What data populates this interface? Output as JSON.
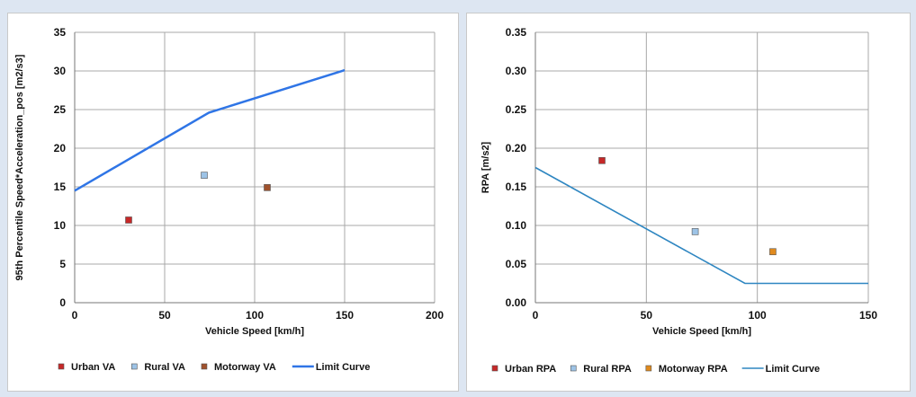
{
  "chart_data": [
    {
      "type": "scatter",
      "title": "",
      "xlabel": "Vehicle Speed [km/h]",
      "ylabel": "95th Percentile Speed*Acceleration_pos [m2/s3]",
      "xlim": [
        0,
        200
      ],
      "ylim": [
        0,
        35
      ],
      "x_ticks": [
        "0",
        "50",
        "100",
        "150",
        "200"
      ],
      "y_ticks": [
        "0",
        "5",
        "10",
        "15",
        "20",
        "25",
        "30",
        "35"
      ],
      "grid": true,
      "legend_position": "bottom",
      "series": [
        {
          "name": "Urban VA",
          "kind": "point",
          "color": "#c62828",
          "points": [
            {
              "x": 30,
              "y": 10.7
            }
          ]
        },
        {
          "name": "Rural VA",
          "kind": "point",
          "color": "#9dc3e6",
          "points": [
            {
              "x": 72,
              "y": 16.5
            }
          ]
        },
        {
          "name": "Motorway VA",
          "kind": "point",
          "color": "#a0522d",
          "points": [
            {
              "x": 107,
              "y": 14.9
            }
          ]
        },
        {
          "name": "Limit Curve",
          "kind": "line",
          "color": "#2f75e6",
          "points": [
            {
              "x": 0,
              "y": 14.5
            },
            {
              "x": 74.6,
              "y": 24.6
            },
            {
              "x": 150,
              "y": 30.1
            }
          ]
        }
      ]
    },
    {
      "type": "scatter",
      "title": "",
      "xlabel": "Vehicle Speed [km/h]",
      "ylabel": "RPA [m/s2]",
      "xlim": [
        0,
        150
      ],
      "ylim": [
        0,
        0.35
      ],
      "x_ticks": [
        "0",
        "50",
        "100",
        "150"
      ],
      "y_ticks": [
        "0.00",
        "0.05",
        "0.10",
        "0.15",
        "0.20",
        "0.25",
        "0.30",
        "0.35"
      ],
      "grid": true,
      "legend_position": "bottom",
      "series": [
        {
          "name": "Urban RPA",
          "kind": "point",
          "color": "#c62828",
          "points": [
            {
              "x": 30,
              "y": 0.184
            }
          ]
        },
        {
          "name": "Rural RPA",
          "kind": "point",
          "color": "#9dc3e6",
          "points": [
            {
              "x": 72,
              "y": 0.092
            }
          ]
        },
        {
          "name": "Motorway RPA",
          "kind": "point",
          "color": "#e08a1e",
          "points": [
            {
              "x": 107,
              "y": 0.066
            }
          ]
        },
        {
          "name": "Limit Curve",
          "kind": "line",
          "color": "#2e86c1",
          "points": [
            {
              "x": 0,
              "y": 0.175
            },
            {
              "x": 94.4,
              "y": 0.025
            },
            {
              "x": 150,
              "y": 0.025
            }
          ]
        }
      ]
    }
  ]
}
